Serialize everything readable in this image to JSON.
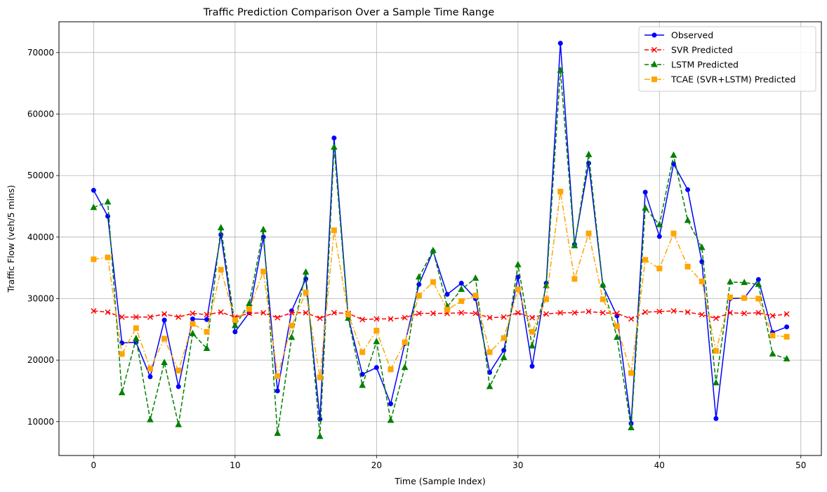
{
  "chart_data": {
    "type": "line",
    "title": "Traffic Prediction Comparison Over a Sample Time Range",
    "xlabel": "Time (Sample Index)",
    "ylabel": "Traffic Flow (veh/5 mins)",
    "xlim": [
      -2.45,
      51.45
    ],
    "ylim": [
      4500,
      75000
    ],
    "xticks": [
      0,
      10,
      20,
      30,
      40,
      50
    ],
    "yticks": [
      10000,
      20000,
      30000,
      40000,
      50000,
      60000,
      70000
    ],
    "grid": true,
    "legend_position": "top-right",
    "x": [
      0,
      1,
      2,
      3,
      4,
      5,
      6,
      7,
      8,
      9,
      10,
      11,
      12,
      13,
      14,
      15,
      16,
      17,
      18,
      19,
      20,
      21,
      22,
      23,
      24,
      25,
      26,
      27,
      28,
      29,
      30,
      31,
      32,
      33,
      34,
      35,
      36,
      37,
      38,
      39,
      40,
      41,
      42,
      43,
      44,
      45,
      46,
      47,
      48,
      49
    ],
    "series": [
      {
        "name": "Observed",
        "color": "#0000ff",
        "line_style": "solid",
        "marker": "circle",
        "values": [
          47600,
          43400,
          22800,
          22900,
          17300,
          26500,
          15700,
          26700,
          26600,
          40400,
          24600,
          27700,
          40000,
          15000,
          28000,
          33200,
          10400,
          56100,
          27000,
          17700,
          18800,
          12900,
          22700,
          32300,
          37700,
          30700,
          32500,
          30000,
          18000,
          21600,
          33500,
          19000,
          32500,
          71500,
          38800,
          52000,
          32100,
          27200,
          9700,
          47300,
          40100,
          51900,
          47700,
          36000,
          10500,
          30000,
          30100,
          33100,
          24500,
          25400
        ]
      },
      {
        "name": "SVR Predicted",
        "color": "#ff0000",
        "line_style": "dashed",
        "marker": "x",
        "values": [
          28000,
          27800,
          27000,
          27000,
          27000,
          27500,
          27000,
          27600,
          27400,
          27800,
          27000,
          27600,
          27700,
          26900,
          27700,
          27700,
          26800,
          27700,
          27600,
          26600,
          26700,
          26700,
          26900,
          27600,
          27600,
          27600,
          27700,
          27600,
          26900,
          27000,
          27700,
          26900,
          27500,
          27700,
          27700,
          27900,
          27700,
          27600,
          26700,
          27800,
          27900,
          28000,
          27800,
          27400,
          26800,
          27700,
          27600,
          27700,
          27200,
          27500
        ]
      },
      {
        "name": "LSTM Predicted",
        "color": "#008000",
        "line_style": "dashed",
        "marker": "triangle",
        "values": [
          44800,
          45700,
          14700,
          23500,
          10300,
          19600,
          9500,
          24300,
          21900,
          41500,
          25600,
          29200,
          41200,
          8100,
          23700,
          34300,
          7600,
          54600,
          26800,
          15900,
          23000,
          10200,
          18800,
          33500,
          37800,
          28700,
          31500,
          33300,
          15700,
          20400,
          35500,
          22300,
          32100,
          67100,
          38600,
          53400,
          32200,
          23700,
          9000,
          44700,
          42000,
          53300,
          42700,
          38300,
          16300,
          32700,
          32600,
          32300,
          21000,
          20200
        ]
      },
      {
        "name": "TCAE (SVR+LSTM) Predicted",
        "color": "#ffa500",
        "line_style": "dashdot",
        "marker": "square",
        "values": [
          36400,
          36700,
          21000,
          25200,
          18600,
          23500,
          18300,
          25900,
          24600,
          34700,
          26500,
          28300,
          34400,
          17400,
          25600,
          31000,
          17200,
          41100,
          27400,
          21300,
          24800,
          18500,
          22900,
          30500,
          32700,
          28200,
          29600,
          30500,
          21300,
          23600,
          31500,
          24600,
          29900,
          47400,
          33200,
          40600,
          29900,
          25500,
          17900,
          36300,
          34900,
          40600,
          35200,
          32800,
          21500,
          30200,
          30100,
          30000,
          24000,
          23800
        ]
      }
    ]
  }
}
